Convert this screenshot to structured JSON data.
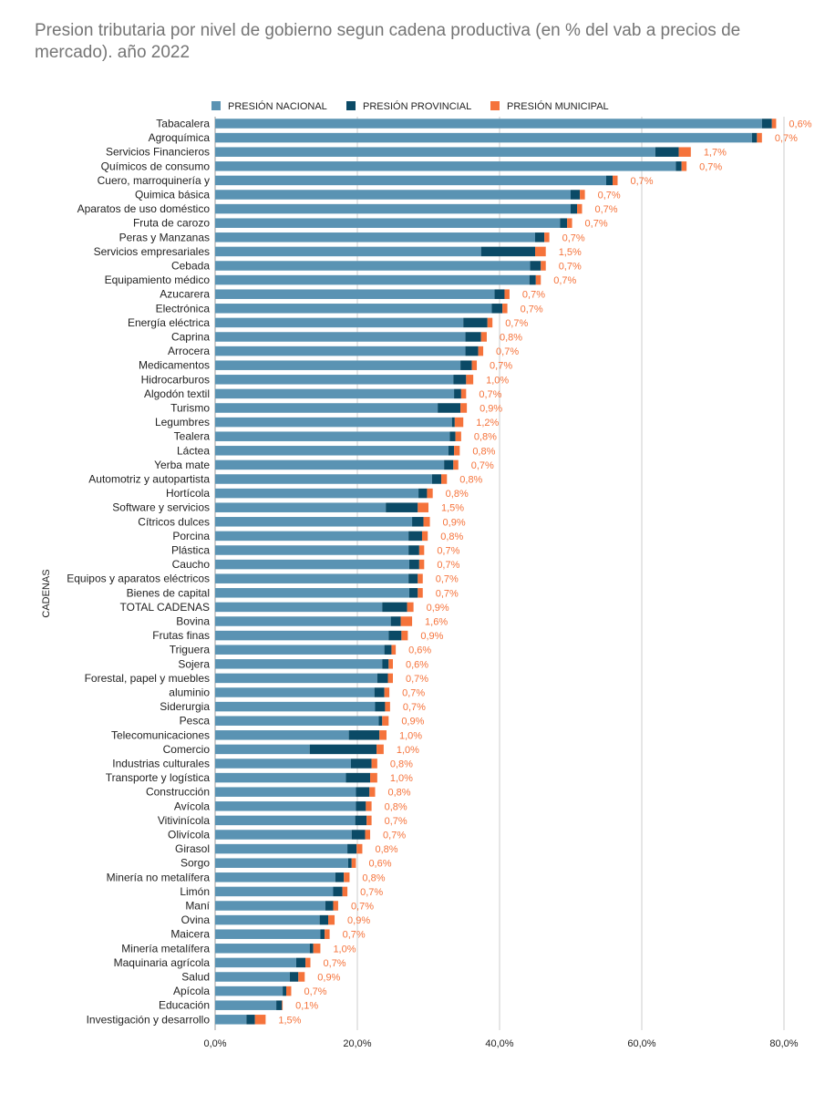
{
  "chart_data": {
    "type": "bar",
    "orientation": "horizontal",
    "stacked": true,
    "title": "Presion tributaria por nivel de gobierno segun cadena productiva (en % del vab a precios de mercado). año 2022",
    "ylabel": "CADENAS",
    "xlim": [
      0,
      80
    ],
    "xticks": [
      "0,0%",
      "20,0%",
      "40,0%",
      "60,0%",
      "80,0%"
    ],
    "xtick_values": [
      0,
      20,
      40,
      60,
      80
    ],
    "grid": true,
    "legend_position": "top",
    "series": [
      {
        "name": "PRESIÓN NACIONAL",
        "color": "#5a93b3",
        "values": [
          76.9,
          75.5,
          61.9,
          64.8,
          55.0,
          50.0,
          50.0,
          48.5,
          45.0,
          37.4,
          44.3,
          44.2,
          39.3,
          38.9,
          34.9,
          35.2,
          35.2,
          34.5,
          33.5,
          33.6,
          31.3,
          33.3,
          33.0,
          32.8,
          32.2,
          30.5,
          28.6,
          24.0,
          27.7,
          27.2,
          27.2,
          27.3,
          27.2,
          27.3,
          23.5,
          24.7,
          24.4,
          23.8,
          23.5,
          22.8,
          22.4,
          22.5,
          23.0,
          18.8,
          13.3,
          19.1,
          18.4,
          19.8,
          19.8,
          19.7,
          19.2,
          18.6,
          18.7,
          16.9,
          16.6,
          15.5,
          14.7,
          14.8,
          13.3,
          11.4,
          10.5,
          9.5,
          8.6,
          4.4
        ]
      },
      {
        "name": "PRESIÓN PROVINCIAL",
        "color": "#0b4a66",
        "values": [
          1.4,
          0.7,
          3.3,
          0.8,
          0.9,
          1.3,
          0.9,
          1.0,
          1.3,
          7.6,
          1.5,
          0.9,
          1.4,
          1.5,
          3.4,
          2.2,
          1.8,
          1.6,
          1.8,
          1.0,
          3.2,
          0.4,
          0.8,
          0.8,
          1.3,
          1.3,
          1.2,
          4.5,
          1.6,
          1.9,
          1.5,
          1.4,
          1.3,
          1.2,
          3.5,
          1.4,
          1.8,
          1.0,
          0.9,
          1.5,
          1.4,
          1.4,
          0.5,
          4.3,
          9.4,
          2.9,
          3.4,
          1.9,
          1.4,
          1.6,
          1.9,
          1.3,
          0.5,
          1.2,
          1.3,
          1.1,
          1.2,
          0.6,
          0.5,
          1.3,
          1.2,
          0.5,
          0.8,
          1.2
        ]
      },
      {
        "name": "PRESIÓN MUNICIPAL",
        "color": "#f5733b",
        "values": [
          0.6,
          0.7,
          1.7,
          0.7,
          0.7,
          0.7,
          0.7,
          0.7,
          0.7,
          1.5,
          0.7,
          0.7,
          0.7,
          0.7,
          0.7,
          0.8,
          0.7,
          0.7,
          1.0,
          0.7,
          0.9,
          1.2,
          0.8,
          0.8,
          0.7,
          0.8,
          0.8,
          1.5,
          0.9,
          0.8,
          0.7,
          0.7,
          0.7,
          0.7,
          0.9,
          1.6,
          0.9,
          0.6,
          0.6,
          0.7,
          0.7,
          0.7,
          0.9,
          1.0,
          1.0,
          0.8,
          1.0,
          0.8,
          0.8,
          0.7,
          0.7,
          0.8,
          0.6,
          0.8,
          0.7,
          0.7,
          0.9,
          0.7,
          1.0,
          0.7,
          0.9,
          0.7,
          0.1,
          1.5
        ]
      }
    ],
    "categories": [
      "Tabacalera",
      "Agroquímica",
      "Servicios Financieros",
      "Químicos de consumo",
      "Cuero, marroquinería y",
      "Quimica básica",
      "Aparatos de uso doméstico",
      "Fruta de carozo",
      "Peras y Manzanas",
      "Servicios empresariales",
      "Cebada",
      "Equipamiento médico",
      "Azucarera",
      "Electrónica",
      "Energía eléctrica",
      "Caprina",
      "Arrocera",
      "Medicamentos",
      "Hidrocarburos",
      "Algodón textil",
      "Turismo",
      "Legumbres",
      "Tealera",
      "Láctea",
      "Yerba mate",
      "Automotriz y autopartista",
      "Hortícola",
      "Software y servicios",
      "Cítricos dulces",
      "Porcina",
      "Plástica",
      "Caucho",
      "Equipos y aparatos eléctricos",
      "Bienes de capital",
      "TOTAL CADENAS",
      "Bovina",
      "Frutas finas",
      "Triguera",
      "Sojera",
      "Forestal, papel y muebles",
      "aluminio",
      "Siderurgia",
      "Pesca",
      "Telecomunicaciones",
      "Comercio",
      "Industrias culturales",
      "Transporte y logística",
      "Construcción",
      "Avícola",
      "Vitivinícola",
      "Olivícola",
      "Girasol",
      "Sorgo",
      "Minería no metalífera",
      "Limón",
      "Maní",
      "Ovina",
      "Maicera",
      "Minería metalífera",
      "Maquinaria agrícola",
      "Salud",
      "Apícola",
      "Educación",
      "Investigación y desarrollo"
    ],
    "data_labels": [
      "0,6%",
      "0,7%",
      "1,7%",
      "0,7%",
      "0,7%",
      "0,7%",
      "0,7%",
      "0,7%",
      "0,7%",
      "1,5%",
      "0,7%",
      "0,7%",
      "0,7%",
      "0,7%",
      "0,7%",
      "0,8%",
      "0,7%",
      "0,7%",
      "1,0%",
      "0,7%",
      "0,9%",
      "1,2%",
      "0,8%",
      "0,8%",
      "0,7%",
      "0,8%",
      "0,8%",
      "1,5%",
      "0,9%",
      "0,8%",
      "0,7%",
      "0,7%",
      "0,7%",
      "0,7%",
      "0,9%",
      "1,6%",
      "0,9%",
      "0,6%",
      "0,6%",
      "0,7%",
      "0,7%",
      "0,7%",
      "0,9%",
      "1,0%",
      "1,0%",
      "0,8%",
      "1,0%",
      "0,8%",
      "0,8%",
      "0,7%",
      "0,7%",
      "0,8%",
      "0,6%",
      "0,8%",
      "0,7%",
      "0,7%",
      "0,9%",
      "0,7%",
      "1,0%",
      "0,7%",
      "0,9%",
      "0,7%",
      "0,1%",
      "1,5%"
    ],
    "data_label_color": "#f5733b"
  }
}
